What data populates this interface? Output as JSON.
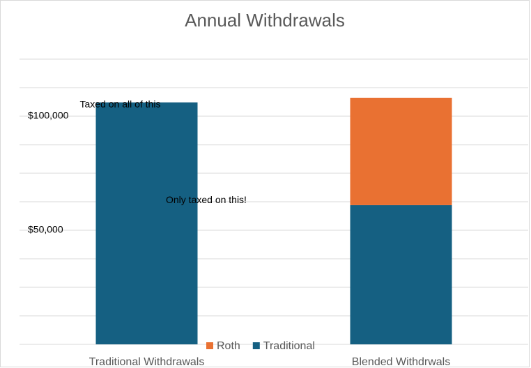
{
  "chart_data": {
    "type": "stacked_bar",
    "title": "Annual Withdrawals",
    "categories": [
      "Traditional Withdrawals",
      "Blended Withdrwals"
    ],
    "series": [
      {
        "name": "Roth",
        "color": "#e97132",
        "values": [
          null,
          47000
        ]
      },
      {
        "name": "Traditional",
        "color": "#156082",
        "values": [
          106000,
          61000
        ]
      }
    ],
    "ylim": [
      0,
      125000
    ],
    "yticks": [
      {
        "value": 50000,
        "label": "$50,000"
      },
      {
        "value": 100000,
        "label": "$100,000"
      }
    ],
    "ygrid": [
      0,
      12500,
      25000,
      37500,
      50000,
      62500,
      75000,
      87500,
      100000,
      112500,
      125000
    ],
    "grid": true,
    "legend": "bottom",
    "annotations": [
      {
        "text": "Taxed on all of this",
        "x": 0.5,
        "y": 105000
      },
      {
        "text": "Only taxed on this!",
        "x": 1,
        "y": 63000
      }
    ]
  }
}
